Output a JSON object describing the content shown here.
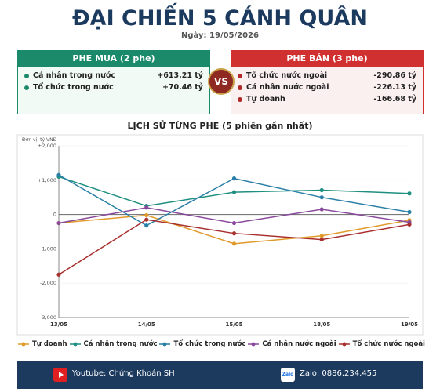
{
  "header": {
    "title": "ĐẠI CHIẾN 5 CÁNH QUÂN",
    "date": "Ngày: 19/05/2026"
  },
  "buy_side": {
    "title": "PHE MUA  (2 phe)",
    "rows": [
      [
        "Cá nhân trong nước",
        "+613.21 tỷ"
      ],
      [
        "Tổ chức trong nước",
        "+70.46 tỷ"
      ]
    ]
  },
  "vs": "VS",
  "sell_side": {
    "title": "PHE BÁN  (3 phe)",
    "rows": [
      [
        "Tổ chức nước ngoài",
        "-290.86 tỷ"
      ],
      [
        "Cá nhân nước ngoài",
        "-226.13 tỷ"
      ],
      [
        "Tự doanh",
        "-166.68 tỷ"
      ]
    ]
  },
  "chart_data": {
    "type": "line",
    "title": "LỊCH SỬ TỪNG PHE (5 phiên gần nhất)",
    "unit": "Đơn vị: tỷ VNĐ",
    "categories": [
      "13/05",
      "14/05",
      "15/05",
      "18/05",
      "19/05"
    ],
    "series": [
      {
        "name": "Tự doanh",
        "color": "#e09a2a",
        "values": [
          -250,
          -20,
          -850,
          -620,
          -166.68
        ]
      },
      {
        "name": "Cá nhân trong nước",
        "color": "#1f8f80",
        "values": [
          1100,
          250,
          650,
          710,
          613.21
        ]
      },
      {
        "name": "Tổ chức trong nước",
        "color": "#2a7fa6",
        "values": [
          1150,
          -320,
          1050,
          500,
          70.46
        ]
      },
      {
        "name": "Cá nhân nước ngoài",
        "color": "#8a4a9c",
        "values": [
          -250,
          200,
          -250,
          150,
          -226.13
        ]
      },
      {
        "name": "Tổ chức nước ngoài",
        "color": "#a8302e",
        "values": [
          -1750,
          -150,
          -550,
          -730,
          -290.86
        ]
      }
    ],
    "ylim": [
      -3000,
      2000
    ],
    "yticks": [
      {
        "value": 2000,
        "label": "+2,000"
      },
      {
        "value": 1000,
        "label": "+1,000"
      },
      0,
      {
        "value": -1000,
        "label": "-1,000"
      },
      {
        "value": -2000,
        "label": "-2,000"
      },
      {
        "value": -3000,
        "label": "-3,000"
      }
    ],
    "grid": true
  },
  "footer": {
    "youtube": "Youtube: Chứng Khoán SH",
    "zalo_icon": "Zalo",
    "zalo": "Zalo: 0886.234.455"
  }
}
